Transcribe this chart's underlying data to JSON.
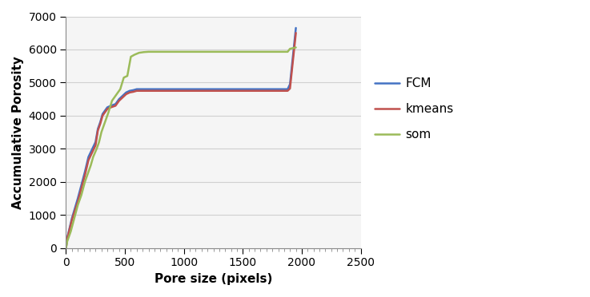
{
  "title": "",
  "xlabel": "Pore size (pixels)",
  "ylabel": "Accumulative Porosity",
  "xlim": [
    0,
    2500
  ],
  "ylim": [
    0,
    7000
  ],
  "xticks": [
    0,
    500,
    1000,
    1500,
    2000,
    2500
  ],
  "yticks": [
    0,
    1000,
    2000,
    3000,
    4000,
    5000,
    6000,
    7000
  ],
  "fcm_color": "#4472C4",
  "kmeans_color": "#C0504D",
  "som_color": "#9BBB59",
  "line_width": 1.8,
  "fcm_x": [
    0,
    10,
    50,
    100,
    130,
    160,
    190,
    210,
    230,
    250,
    270,
    290,
    310,
    330,
    350,
    380,
    420,
    450,
    480,
    510,
    540,
    570,
    600,
    1880,
    1900,
    1950
  ],
  "fcm_y": [
    0,
    300,
    900,
    1500,
    1900,
    2300,
    2750,
    2900,
    3050,
    3200,
    3600,
    3800,
    4050,
    4150,
    4250,
    4300,
    4350,
    4500,
    4600,
    4700,
    4750,
    4770,
    4800,
    4800,
    4950,
    6650
  ],
  "kmeans_x": [
    0,
    10,
    50,
    100,
    130,
    160,
    190,
    210,
    230,
    250,
    270,
    290,
    310,
    330,
    350,
    380,
    420,
    450,
    480,
    510,
    540,
    570,
    600,
    1880,
    1900,
    1950
  ],
  "kmeans_y": [
    0,
    280,
    850,
    1400,
    1800,
    2200,
    2650,
    2800,
    2950,
    3100,
    3550,
    3750,
    4000,
    4100,
    4200,
    4250,
    4300,
    4450,
    4550,
    4650,
    4700,
    4720,
    4750,
    4750,
    4820,
    6500
  ],
  "som_x": [
    0,
    10,
    40,
    70,
    100,
    130,
    160,
    190,
    210,
    230,
    260,
    280,
    300,
    320,
    340,
    360,
    390,
    420,
    440,
    460,
    490,
    520,
    550,
    580,
    620,
    660,
    700,
    1880,
    1900,
    1950
  ],
  "som_y": [
    0,
    200,
    500,
    900,
    1300,
    1600,
    2000,
    2300,
    2500,
    2750,
    3000,
    3200,
    3500,
    3700,
    3900,
    4100,
    4450,
    4600,
    4700,
    4800,
    5150,
    5200,
    5780,
    5840,
    5900,
    5920,
    5930,
    5930,
    6020,
    6060
  ],
  "legend_labels": [
    "FCM",
    "kmeans",
    "som"
  ],
  "background_color": "#FFFFFF",
  "plot_bg_color": "#F5F5F5",
  "grid_color": "#D0D0D0",
  "xlabel_fontsize": 11,
  "ylabel_fontsize": 11,
  "tick_fontsize": 10,
  "legend_fontsize": 11,
  "minor_x_spacing": 50
}
